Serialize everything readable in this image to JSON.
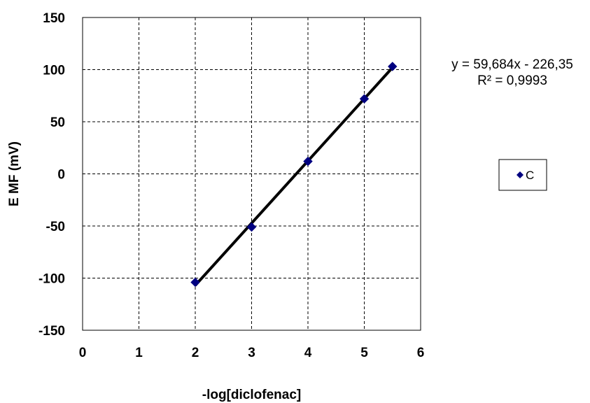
{
  "chart_data": {
    "type": "scatter",
    "title": "",
    "xlabel": "-log[diclofenac]",
    "ylabel": "E MF (mV)",
    "xlim": [
      0,
      6
    ],
    "ylim": [
      -150,
      150
    ],
    "x_ticks": [
      "0",
      "1",
      "2",
      "3",
      "4",
      "5",
      "6"
    ],
    "y_ticks": [
      "150",
      "100",
      "50",
      "0",
      "-50",
      "-100",
      "-150"
    ],
    "grid": true,
    "legend_position": "right",
    "series": [
      {
        "name": "C",
        "marker": "diamond",
        "color": "#000080",
        "x": [
          2,
          3,
          4,
          5,
          5.5
        ],
        "y": [
          -104,
          -51,
          12,
          72,
          103
        ]
      }
    ],
    "trendline": {
      "type": "linear",
      "slope": 59.684,
      "intercept": -226.35,
      "x_range": [
        2,
        5.5
      ],
      "color": "#000000"
    },
    "annotations": [
      "y = 59,684x - 226,35",
      "R² = 0,9993"
    ]
  }
}
